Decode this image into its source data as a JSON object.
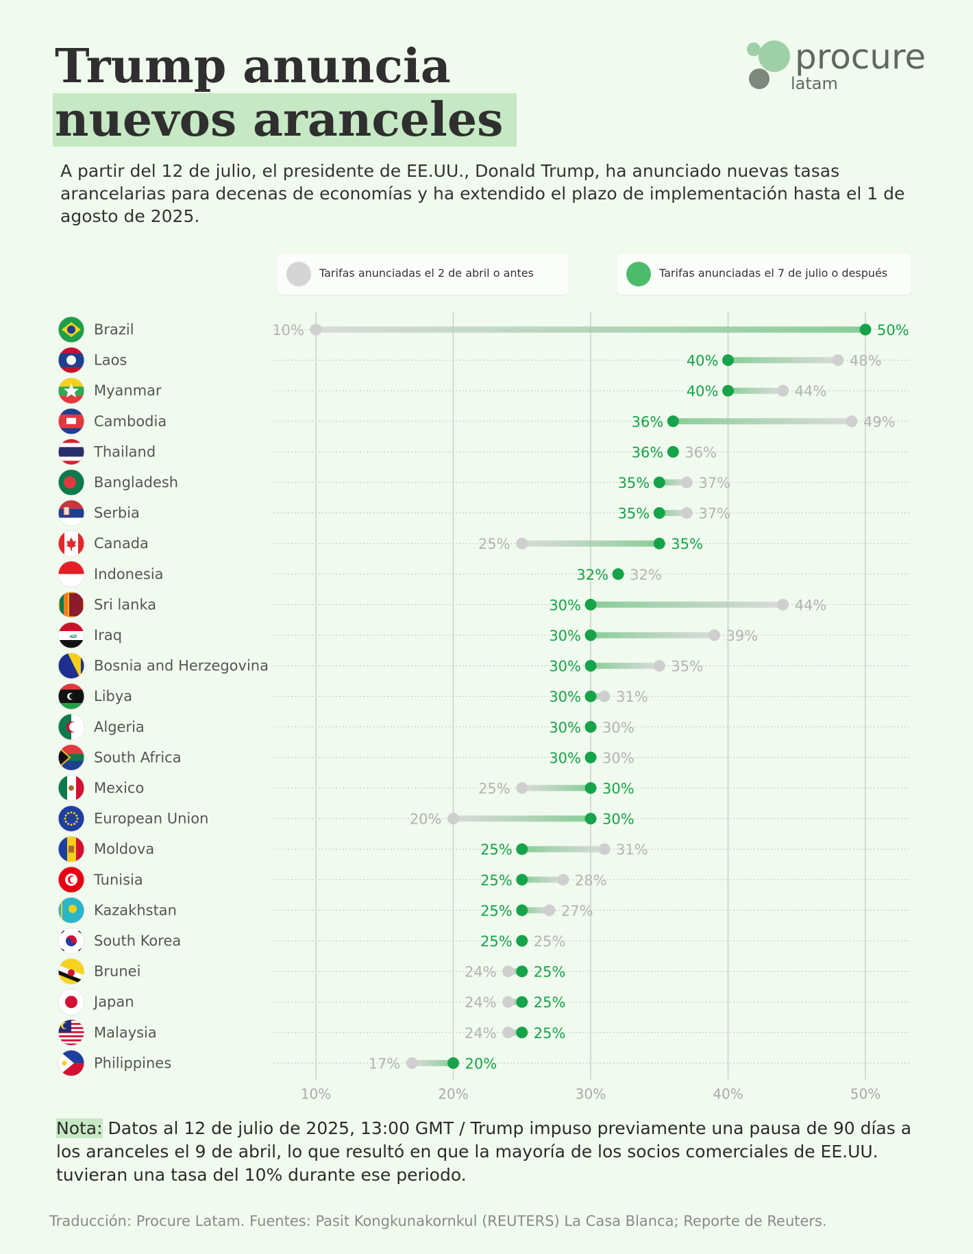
{
  "title": {
    "line1": "Trump anuncia",
    "line2": "nuevos aranceles"
  },
  "logo": {
    "word": "procure",
    "sub": "latam"
  },
  "intro": "A partir del 12 de julio, el presidente de EE.UU., Donald Trump, ha anunciado nuevas tasas arancelarias para decenas de economías y ha extendido el plazo de implementación hasta el 1 de agosto de 2025.",
  "legend": {
    "old": "Tarifas anunciadas el 2 de abril o antes",
    "new": "Tarifas anunciadas el 7 de julio o después"
  },
  "colors": {
    "old": "#cfcfcf",
    "new": "#16a34a",
    "highlight": "#c6e8c4",
    "background": "#f1faee"
  },
  "note": {
    "label": "Nota:",
    "text": " Datos al 12 de julio de 2025, 13:00 GMT / Trump impuso previamente una pausa de 90 días a los aranceles el 9 de abril, lo que resultó en que la mayoría de los socios comerciales de EE.UU. tuvieran una tasa del 10% durante ese periodo."
  },
  "source": "Traducción: Procure Latam. Fuentes: Pasit Kongkunakornkul (REUTERS) La Casa Blanca; Reporte de Reuters.",
  "chart_data": {
    "type": "dumbbell",
    "xlim": [
      10,
      50
    ],
    "ticks": [
      "10%",
      "20%",
      "30%",
      "40%",
      "50%"
    ],
    "tick_values": [
      10,
      20,
      30,
      40,
      50
    ],
    "series": [
      {
        "name": "Tarifas anunciadas el 2 de abril o antes",
        "key": "old"
      },
      {
        "name": "Tarifas anunciadas el 7 de julio o después",
        "key": "new"
      }
    ],
    "rows": [
      {
        "country": "Brazil",
        "flag": "brazil-flag-icon",
        "old": 10,
        "new": 50
      },
      {
        "country": "Laos",
        "flag": "laos-flag-icon",
        "old": 48,
        "new": 40
      },
      {
        "country": "Myanmar",
        "flag": "myanmar-flag-icon",
        "old": 44,
        "new": 40
      },
      {
        "country": "Cambodia",
        "flag": "cambodia-flag-icon",
        "old": 49,
        "new": 36
      },
      {
        "country": "Thailand",
        "flag": "thailand-flag-icon",
        "old": 36,
        "new": 36
      },
      {
        "country": "Bangladesh",
        "flag": "bangladesh-flag-icon",
        "old": 37,
        "new": 35
      },
      {
        "country": "Serbia",
        "flag": "serbia-flag-icon",
        "old": 37,
        "new": 35
      },
      {
        "country": "Canada",
        "flag": "canada-flag-icon",
        "old": 25,
        "new": 35
      },
      {
        "country": "Indonesia",
        "flag": "indonesia-flag-icon",
        "old": 32,
        "new": 32
      },
      {
        "country": "Sri lanka",
        "flag": "sri-lanka-flag-icon",
        "old": 44,
        "new": 30
      },
      {
        "country": "Iraq",
        "flag": "iraq-flag-icon",
        "old": 39,
        "new": 30
      },
      {
        "country": "Bosnia and Herzegovina",
        "flag": "bosnia-flag-icon",
        "old": 35,
        "new": 30
      },
      {
        "country": "Libya",
        "flag": "libya-flag-icon",
        "old": 31,
        "new": 30
      },
      {
        "country": "Algeria",
        "flag": "algeria-flag-icon",
        "old": 30,
        "new": 30
      },
      {
        "country": "South Africa",
        "flag": "south-africa-flag-icon",
        "old": 30,
        "new": 30
      },
      {
        "country": "Mexico",
        "flag": "mexico-flag-icon",
        "old": 25,
        "new": 30
      },
      {
        "country": "European Union",
        "flag": "eu-flag-icon",
        "old": 20,
        "new": 30
      },
      {
        "country": "Moldova",
        "flag": "moldova-flag-icon",
        "old": 31,
        "new": 25
      },
      {
        "country": "Tunisia",
        "flag": "tunisia-flag-icon",
        "old": 28,
        "new": 25
      },
      {
        "country": "Kazakhstan",
        "flag": "kazakhstan-flag-icon",
        "old": 27,
        "new": 25
      },
      {
        "country": "South Korea",
        "flag": "south-korea-flag-icon",
        "old": 25,
        "new": 25
      },
      {
        "country": "Brunei",
        "flag": "brunei-flag-icon",
        "old": 24,
        "new": 25
      },
      {
        "country": "Japan",
        "flag": "japan-flag-icon",
        "old": 24,
        "new": 25
      },
      {
        "country": "Malaysia",
        "flag": "malaysia-flag-icon",
        "old": 24,
        "new": 25
      },
      {
        "country": "Philippines",
        "flag": "philippines-flag-icon",
        "old": 17,
        "new": 20
      }
    ]
  }
}
